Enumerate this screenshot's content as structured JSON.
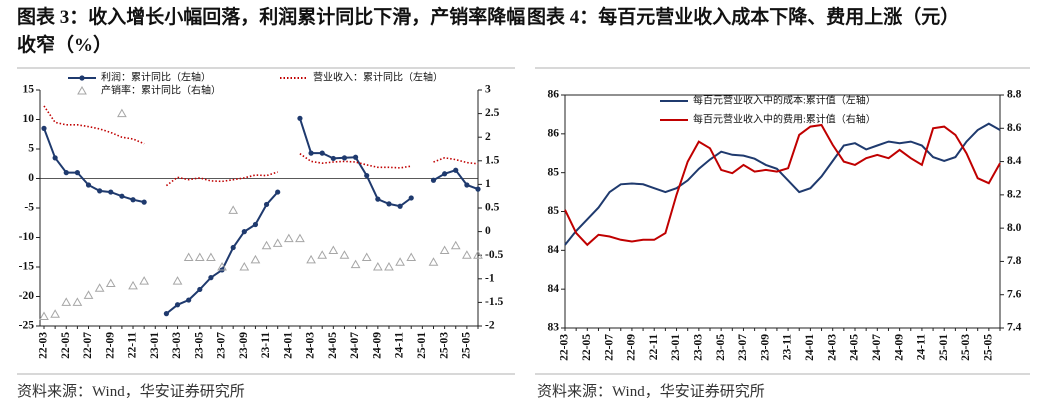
{
  "chart_data": [
    {
      "type": "line",
      "title": "图表 3：收入增长小幅回落，利润累计同比下滑，产销率降幅收窄（%）",
      "source": "资料来源：Wind，华安证券研究所",
      "categories": [
        "22-03",
        null,
        "22-05",
        null,
        "22-07",
        null,
        "22-09",
        null,
        "22-11",
        null,
        "23-01",
        null,
        "23-03",
        null,
        "23-05",
        null,
        "23-07",
        null,
        "23-09",
        null,
        "23-11",
        null,
        "24-01",
        null,
        "24-03",
        null,
        "24-05",
        null,
        "24-07",
        null,
        "24-09",
        null,
        "24-11",
        null,
        "25-01",
        null,
        "25-03",
        null,
        "25-05",
        null
      ],
      "ylim": [
        -25,
        15
      ],
      "yticks": [
        -25,
        -20,
        -15,
        -10,
        -5,
        0,
        5,
        10,
        15
      ],
      "y2lim": [
        -2,
        3
      ],
      "y2ticks": [
        -2,
        -1.5,
        -1,
        -0.5,
        0,
        0.5,
        1,
        1.5,
        2,
        2.5,
        3
      ],
      "series": [
        {
          "name": "利润：累计同比（左轴）",
          "color": "#1f3a6e",
          "line": "solid",
          "marker": "circle",
          "values": [
            8.5,
            3.5,
            1.0,
            1.0,
            -1.1,
            -2.1,
            -2.3,
            -3.0,
            -3.6,
            -4.0,
            null,
            -22.9,
            -21.4,
            -20.6,
            -18.8,
            -16.8,
            -15.5,
            -11.7,
            -9.0,
            -7.8,
            -4.4,
            -2.3,
            null,
            10.2,
            4.3,
            4.3,
            3.4,
            3.5,
            3.6,
            0.5,
            -3.5,
            -4.3,
            -4.7,
            -3.3,
            null,
            -0.3,
            0.8,
            1.4,
            -1.1,
            -1.8
          ]
        },
        {
          "name": "营业收入：累计同比（左轴）",
          "color": "#c00000",
          "line": "dotted",
          "marker": "none",
          "values": [
            12.3,
            9.5,
            9.1,
            9.1,
            8.8,
            8.4,
            7.8,
            7.0,
            6.7,
            5.9,
            null,
            -1.2,
            0.2,
            -0.2,
            0.1,
            -0.4,
            -0.5,
            -0.2,
            0.1,
            0.6,
            0.5,
            1.1,
            null,
            4.2,
            2.9,
            2.6,
            2.8,
            2.9,
            2.8,
            2.3,
            1.9,
            1.9,
            1.8,
            2.1,
            null,
            2.8,
            3.5,
            3.2,
            2.7,
            2.5
          ]
        },
        {
          "name": "产销率：累计同比（右轴）",
          "color": "#a6a6a6",
          "line": "none",
          "marker": "triangle",
          "axis": "y2",
          "values": [
            -1.8,
            -1.75,
            -1.5,
            -1.5,
            -1.35,
            -1.2,
            -1.1,
            2.5,
            -1.15,
            -1.05,
            null,
            null,
            -1.05,
            -0.55,
            -0.55,
            -0.55,
            -0.75,
            0.45,
            -0.75,
            -0.6,
            -0.3,
            -0.25,
            -0.15,
            -0.15,
            -0.6,
            -0.5,
            -0.4,
            -0.5,
            -0.7,
            -0.55,
            -0.75,
            -0.75,
            -0.65,
            -0.55,
            null,
            -0.65,
            -0.4,
            -0.3,
            -0.5,
            -0.5
          ]
        }
      ]
    },
    {
      "type": "line",
      "title": "图表 4：每百元营业收入成本下降、费用上涨（元）",
      "source": "资料来源：Wind，华安证券研究所",
      "frame": true,
      "categories": [
        "22-03",
        null,
        "22-05",
        null,
        "22-07",
        null,
        "22-09",
        null,
        "22-11",
        null,
        "23-01",
        null,
        "23-03",
        null,
        "23-05",
        null,
        "23-07",
        null,
        "23-09",
        null,
        "23-11",
        null,
        "24-01",
        null,
        "24-03",
        null,
        "24-05",
        null,
        "24-07",
        null,
        "24-09",
        null,
        "24-11",
        null,
        "25-01",
        null,
        "25-03",
        null,
        "25-05",
        null
      ],
      "ylim": [
        83,
        86
      ],
      "yticks": [
        83,
        {
          "value": 83.5,
          "label": "84"
        },
        84,
        {
          "value": 84.5,
          "label": "85"
        },
        85,
        {
          "value": 85.5,
          "label": "86"
        },
        86
      ],
      "y2lim": [
        7.4,
        8.8
      ],
      "y2ticks": [
        7.4,
        7.6,
        7.8,
        {
          "value": 8,
          "label": "8.0"
        },
        8.2,
        8.4,
        8.6,
        8.8
      ],
      "series": [
        {
          "name": "每百元营业收入中的成本:累计值（左轴）",
          "color": "#1f3a6e",
          "line": "solid",
          "marker": "none",
          "values": [
            84.07,
            84.25,
            84.4,
            84.55,
            84.75,
            84.85,
            84.86,
            84.85,
            84.8,
            84.75,
            84.8,
            84.9,
            85.05,
            85.17,
            85.27,
            85.23,
            85.22,
            85.18,
            85.1,
            85.05,
            84.9,
            84.75,
            84.8,
            84.95,
            85.15,
            85.35,
            85.38,
            85.3,
            85.35,
            85.4,
            85.38,
            85.4,
            85.35,
            85.2,
            85.15,
            85.2,
            85.4,
            85.55,
            85.63,
            85.55
          ]
        },
        {
          "name": "每百元营业收入中的费用:累计值（右轴）",
          "color": "#c00000",
          "line": "solid",
          "marker": "none",
          "axis": "y2",
          "values": [
            8.11,
            7.97,
            7.9,
            7.96,
            7.95,
            7.93,
            7.92,
            7.93,
            7.93,
            7.97,
            8.2,
            8.4,
            8.52,
            8.48,
            8.35,
            8.33,
            8.38,
            8.34,
            8.35,
            8.34,
            8.36,
            8.56,
            8.61,
            8.62,
            8.5,
            8.4,
            8.38,
            8.42,
            8.44,
            8.42,
            8.47,
            8.42,
            8.38,
            8.6,
            8.61,
            8.56,
            8.45,
            8.3,
            8.27,
            8.39
          ]
        }
      ]
    }
  ]
}
